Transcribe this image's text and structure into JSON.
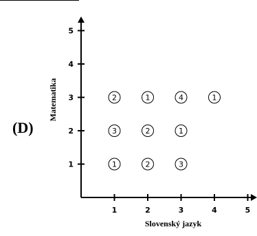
{
  "panel_label": "(D)",
  "chart_data": {
    "type": "scatter",
    "title": "",
    "xlabel": "Slovenský jazyk",
    "ylabel": "Matematika",
    "xlim": [
      0,
      5
    ],
    "ylim": [
      0,
      5
    ],
    "xticks": [
      "1",
      "2",
      "3",
      "4",
      "5"
    ],
    "yticks": [
      "1",
      "2",
      "3",
      "4",
      "5"
    ],
    "grid": false,
    "points": [
      {
        "x": 1,
        "y": 1,
        "count": "1"
      },
      {
        "x": 2,
        "y": 1,
        "count": "2"
      },
      {
        "x": 3,
        "y": 1,
        "count": "3"
      },
      {
        "x": 1,
        "y": 2,
        "count": "3"
      },
      {
        "x": 2,
        "y": 2,
        "count": "2"
      },
      {
        "x": 3,
        "y": 2,
        "count": "1"
      },
      {
        "x": 1,
        "y": 3,
        "count": "2"
      },
      {
        "x": 2,
        "y": 3,
        "count": "1"
      },
      {
        "x": 3,
        "y": 3,
        "count": "4"
      },
      {
        "x": 4,
        "y": 3,
        "count": "1"
      }
    ]
  }
}
